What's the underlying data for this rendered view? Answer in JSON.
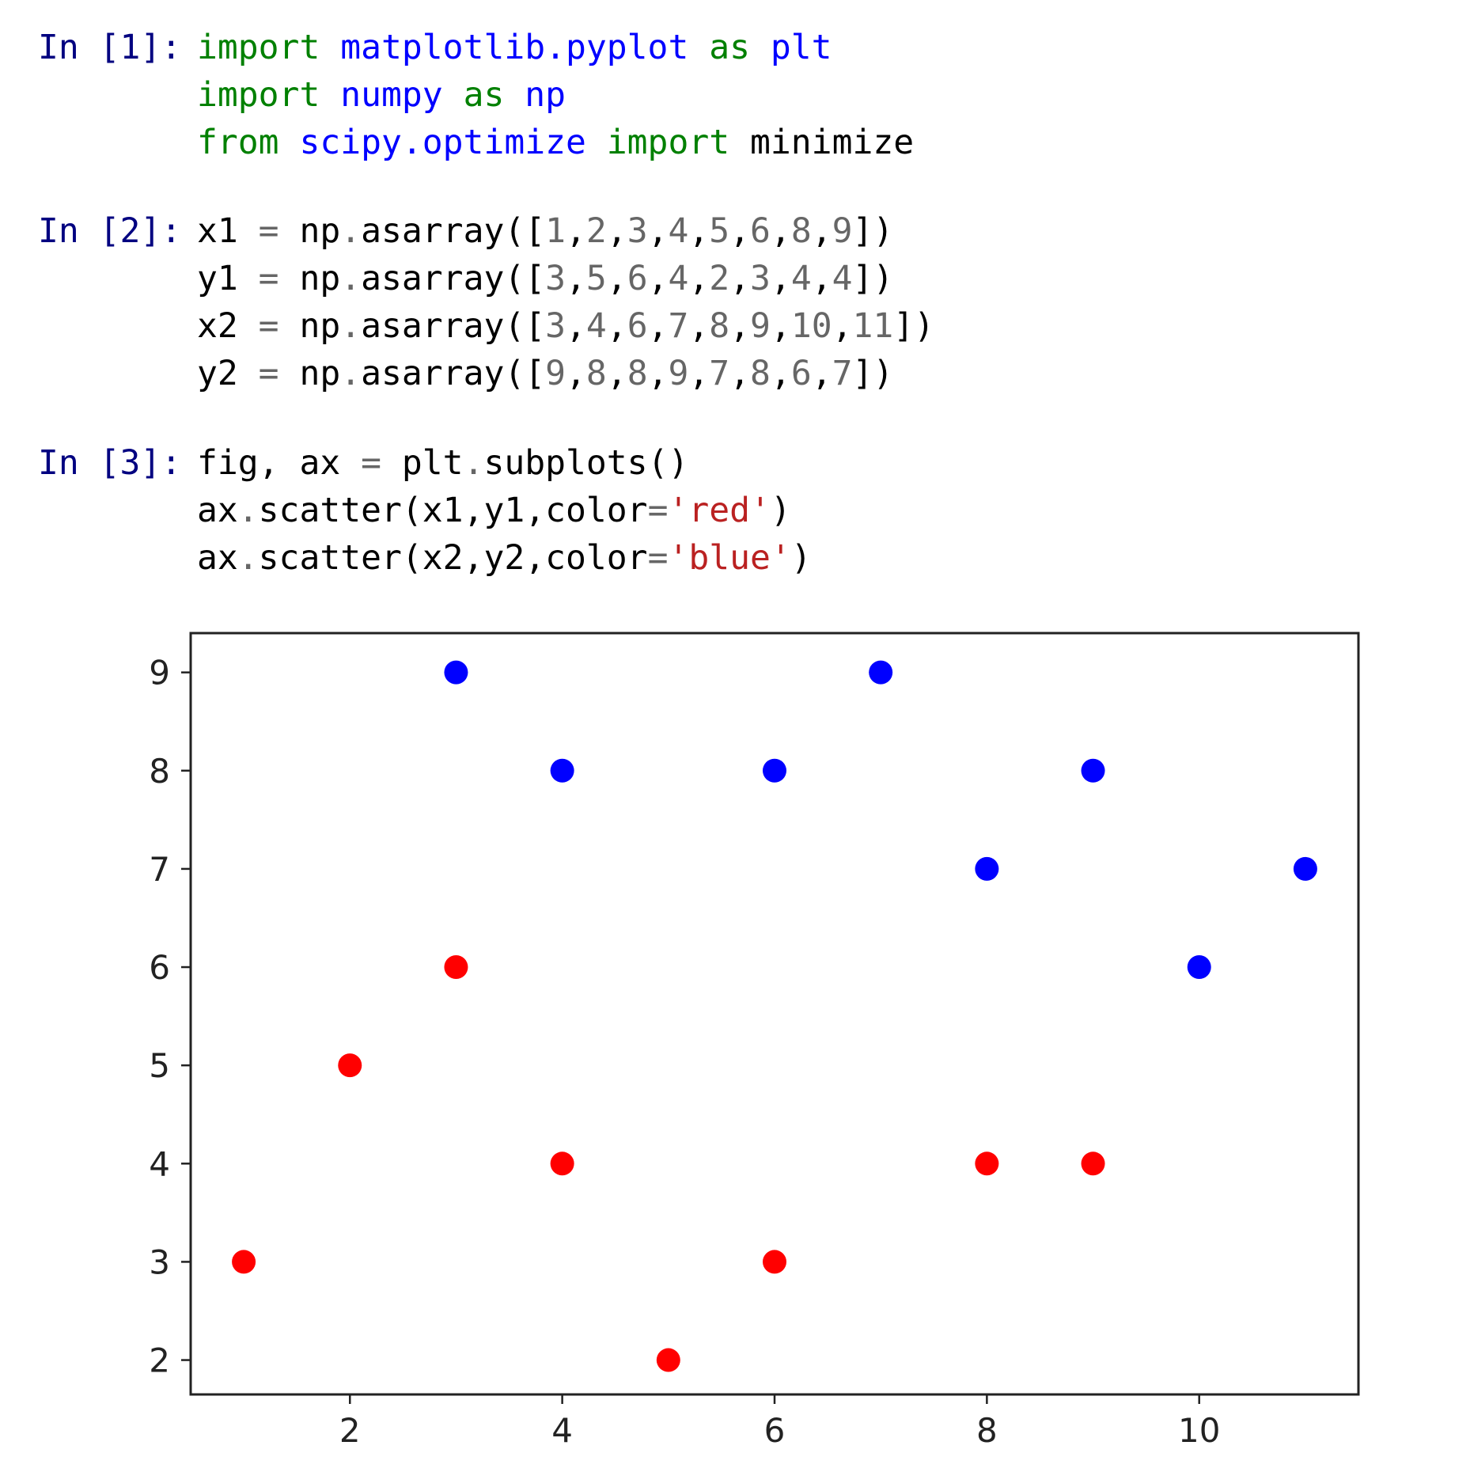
{
  "cells": [
    {
      "prompt": "In [1]:",
      "lines": [
        [
          [
            "kw",
            "import"
          ],
          [
            "plain",
            " "
          ],
          [
            "mod",
            "matplotlib.pyplot"
          ],
          [
            "plain",
            " "
          ],
          [
            "kw",
            "as"
          ],
          [
            "plain",
            " "
          ],
          [
            "mod",
            "plt"
          ]
        ],
        [
          [
            "kw",
            "import"
          ],
          [
            "plain",
            " "
          ],
          [
            "mod",
            "numpy"
          ],
          [
            "plain",
            " "
          ],
          [
            "kw",
            "as"
          ],
          [
            "plain",
            " "
          ],
          [
            "mod",
            "np"
          ]
        ],
        [
          [
            "kw",
            "from"
          ],
          [
            "plain",
            " "
          ],
          [
            "mod",
            "scipy.optimize"
          ],
          [
            "plain",
            " "
          ],
          [
            "kw",
            "import"
          ],
          [
            "plain",
            " minimize"
          ]
        ]
      ]
    },
    {
      "prompt": "In [2]:",
      "lines": [
        [
          [
            "plain",
            "x1 "
          ],
          [
            "op",
            "="
          ],
          [
            "plain",
            " np"
          ],
          [
            "op",
            "."
          ],
          [
            "plain",
            "asarray(["
          ],
          [
            "num",
            "1"
          ],
          [
            "plain",
            ","
          ],
          [
            "num",
            "2"
          ],
          [
            "plain",
            ","
          ],
          [
            "num",
            "3"
          ],
          [
            "plain",
            ","
          ],
          [
            "num",
            "4"
          ],
          [
            "plain",
            ","
          ],
          [
            "num",
            "5"
          ],
          [
            "plain",
            ","
          ],
          [
            "num",
            "6"
          ],
          [
            "plain",
            ","
          ],
          [
            "num",
            "8"
          ],
          [
            "plain",
            ","
          ],
          [
            "num",
            "9"
          ],
          [
            "plain",
            "])"
          ]
        ],
        [
          [
            "plain",
            "y1 "
          ],
          [
            "op",
            "="
          ],
          [
            "plain",
            " np"
          ],
          [
            "op",
            "."
          ],
          [
            "plain",
            "asarray(["
          ],
          [
            "num",
            "3"
          ],
          [
            "plain",
            ","
          ],
          [
            "num",
            "5"
          ],
          [
            "plain",
            ","
          ],
          [
            "num",
            "6"
          ],
          [
            "plain",
            ","
          ],
          [
            "num",
            "4"
          ],
          [
            "plain",
            ","
          ],
          [
            "num",
            "2"
          ],
          [
            "plain",
            ","
          ],
          [
            "num",
            "3"
          ],
          [
            "plain",
            ","
          ],
          [
            "num",
            "4"
          ],
          [
            "plain",
            ","
          ],
          [
            "num",
            "4"
          ],
          [
            "plain",
            "])"
          ]
        ],
        [
          [
            "plain",
            "x2 "
          ],
          [
            "op",
            "="
          ],
          [
            "plain",
            " np"
          ],
          [
            "op",
            "."
          ],
          [
            "plain",
            "asarray(["
          ],
          [
            "num",
            "3"
          ],
          [
            "plain",
            ","
          ],
          [
            "num",
            "4"
          ],
          [
            "plain",
            ","
          ],
          [
            "num",
            "6"
          ],
          [
            "plain",
            ","
          ],
          [
            "num",
            "7"
          ],
          [
            "plain",
            ","
          ],
          [
            "num",
            "8"
          ],
          [
            "plain",
            ","
          ],
          [
            "num",
            "9"
          ],
          [
            "plain",
            ","
          ],
          [
            "num",
            "10"
          ],
          [
            "plain",
            ","
          ],
          [
            "num",
            "11"
          ],
          [
            "plain",
            "])"
          ]
        ],
        [
          [
            "plain",
            "y2 "
          ],
          [
            "op",
            "="
          ],
          [
            "plain",
            " np"
          ],
          [
            "op",
            "."
          ],
          [
            "plain",
            "asarray(["
          ],
          [
            "num",
            "9"
          ],
          [
            "plain",
            ","
          ],
          [
            "num",
            "8"
          ],
          [
            "plain",
            ","
          ],
          [
            "num",
            "8"
          ],
          [
            "plain",
            ","
          ],
          [
            "num",
            "9"
          ],
          [
            "plain",
            ","
          ],
          [
            "num",
            "7"
          ],
          [
            "plain",
            ","
          ],
          [
            "num",
            "8"
          ],
          [
            "plain",
            ","
          ],
          [
            "num",
            "6"
          ],
          [
            "plain",
            ","
          ],
          [
            "num",
            "7"
          ],
          [
            "plain",
            "])"
          ]
        ]
      ]
    },
    {
      "prompt": "In [3]:",
      "lines": [
        [
          [
            "plain",
            "fig, ax "
          ],
          [
            "op",
            "="
          ],
          [
            "plain",
            " plt"
          ],
          [
            "op",
            "."
          ],
          [
            "plain",
            "subplots()"
          ]
        ],
        [
          [
            "plain",
            "ax"
          ],
          [
            "op",
            "."
          ],
          [
            "plain",
            "scatter(x1,y1,color"
          ],
          [
            "op",
            "="
          ],
          [
            "str",
            "'red'"
          ],
          [
            "plain",
            ")"
          ]
        ],
        [
          [
            "plain",
            "ax"
          ],
          [
            "op",
            "."
          ],
          [
            "plain",
            "scatter(x2,y2,color"
          ],
          [
            "op",
            "="
          ],
          [
            "str",
            "'blue'"
          ],
          [
            "plain",
            ")"
          ]
        ]
      ]
    }
  ],
  "colors": {
    "keyword": "#008000",
    "module": "#0000ff",
    "string": "#ba2121",
    "number": "#666666",
    "prompt": "#000080"
  },
  "chart_data": {
    "type": "scatter",
    "series": [
      {
        "color": "#ff0000",
        "x": [
          1,
          2,
          3,
          4,
          5,
          6,
          8,
          9
        ],
        "y": [
          3,
          5,
          6,
          4,
          2,
          3,
          4,
          4
        ]
      },
      {
        "color": "#0000ff",
        "x": [
          3,
          4,
          6,
          7,
          8,
          9,
          10,
          11
        ],
        "y": [
          9,
          8,
          8,
          9,
          7,
          8,
          6,
          7
        ]
      }
    ],
    "xticks": [
      2,
      4,
      6,
      8,
      10
    ],
    "yticks": [
      2,
      3,
      4,
      5,
      6,
      7,
      8,
      9
    ],
    "xlim": [
      0.5,
      11.5
    ],
    "ylim": [
      1.65,
      9.4
    ],
    "grid": false,
    "title": "",
    "xlabel": "",
    "ylabel": ""
  }
}
